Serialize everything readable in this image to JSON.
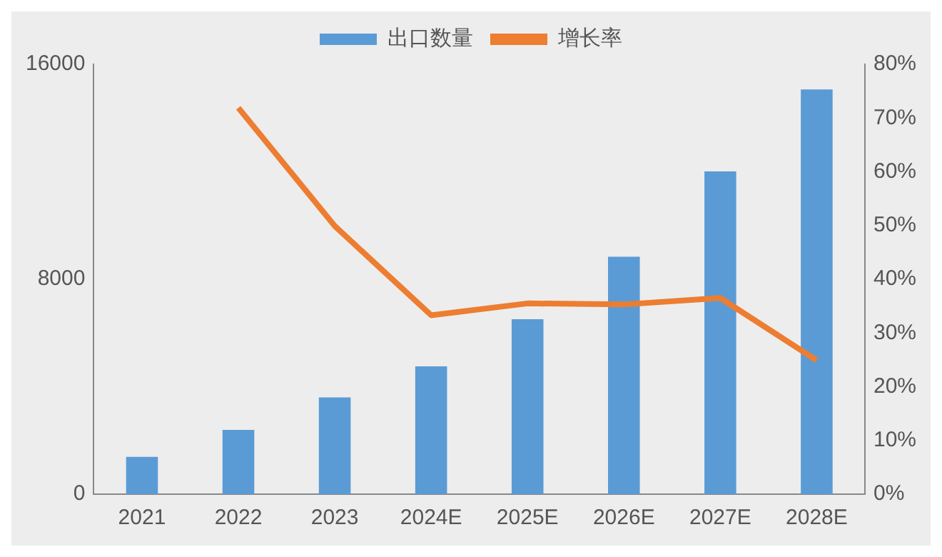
{
  "chart_data": {
    "type": "bar",
    "categories": [
      "2021",
      "2022",
      "2023",
      "2024E",
      "2025E",
      "2026E",
      "2027E",
      "2028E"
    ],
    "series": [
      {
        "name": "出口数量",
        "color": "#5b9bd5",
        "values": [
          1390,
          2390,
          3600,
          4760,
          6510,
          8840,
          12010,
          15060
        ]
      },
      {
        "name": "增长率",
        "type": "line",
        "axis": "y2",
        "color": "#ed7d31",
        "values": [
          null,
          71.9,
          49.9,
          33.3,
          35.5,
          35.3,
          36.5,
          24.9
        ]
      }
    ],
    "ylim": [
      0,
      16000
    ],
    "yticks": [
      0,
      8000,
      16000
    ],
    "y2lim": [
      0,
      80
    ],
    "y2ticks": [
      {
        "value": 0,
        "label": "0%"
      },
      {
        "value": 10,
        "label": "10%"
      },
      {
        "value": 20,
        "label": "20%"
      },
      {
        "value": 30,
        "label": "30%"
      },
      {
        "value": 40,
        "label": "40%"
      },
      {
        "value": 50,
        "label": "50%"
      },
      {
        "value": 60,
        "label": "60%"
      },
      {
        "value": 70,
        "label": "70%"
      },
      {
        "value": 80,
        "label": "80%"
      }
    ],
    "grid": false,
    "legend": "top",
    "marker": "none"
  }
}
